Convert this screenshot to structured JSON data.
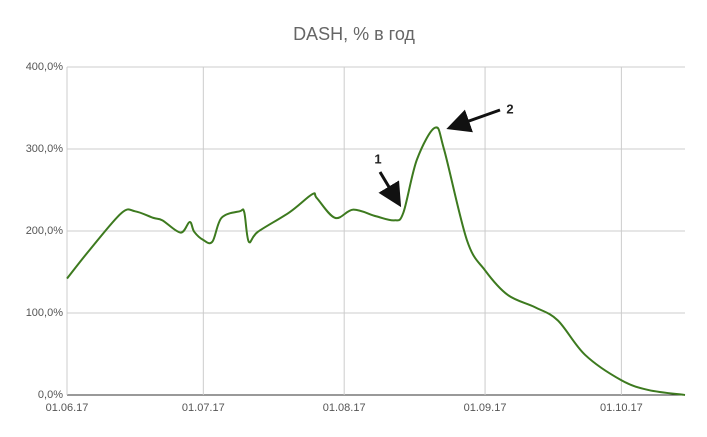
{
  "chart_data": {
    "type": "line",
    "title": "DASH, % в год",
    "x": [
      "01.06.17",
      "06.06.17",
      "13.06.17",
      "16.06.17",
      "20.06.17",
      "22.06.17",
      "26.06.17",
      "28.06.17",
      "29.06.17",
      "01.07.17",
      "03.07.17",
      "05.07.17",
      "09.07.17",
      "10.07.17",
      "11.07.17",
      "13.07.17",
      "20.07.17",
      "25.07.17",
      "26.07.17",
      "30.07.17",
      "03.08.17",
      "08.08.17",
      "12.08.17",
      "14.08.17",
      "17.08.17",
      "21.08.17",
      "23.08.17",
      "28.08.17",
      "01.09.17",
      "06.09.17",
      "12.09.17",
      "17.09.17",
      "23.09.17",
      "01.10.17",
      "07.10.17",
      "15.10.17"
    ],
    "series": [
      {
        "color": "#3d7a1f",
        "values": [
          142,
          177,
          222,
          224,
          216,
          213,
          198,
          211,
          199,
          189,
          187,
          216,
          224,
          223,
          187,
          199,
          223,
          245,
          240,
          216,
          226,
          218,
          213,
          222,
          287,
          326,
          299,
          189,
          152,
          122,
          107,
          91,
          49,
          18,
          6,
          0
        ]
      }
    ],
    "xlim": [
      "01.06.17",
      "15.10.17"
    ],
    "xticks": [
      "01.06.17",
      "01.07.17",
      "01.08.17",
      "01.09.17",
      "01.10.17"
    ],
    "ylim": [
      0,
      400
    ],
    "yticks": [
      {
        "value": 0,
        "label": "0,0%"
      },
      {
        "value": 100,
        "label": "100,0%"
      },
      {
        "value": 200,
        "label": "200,0%"
      },
      {
        "value": 300,
        "label": "300,0%"
      },
      {
        "value": 400,
        "label": "400,0%"
      }
    ],
    "grid": true,
    "annotations": [
      "1",
      "2"
    ]
  }
}
